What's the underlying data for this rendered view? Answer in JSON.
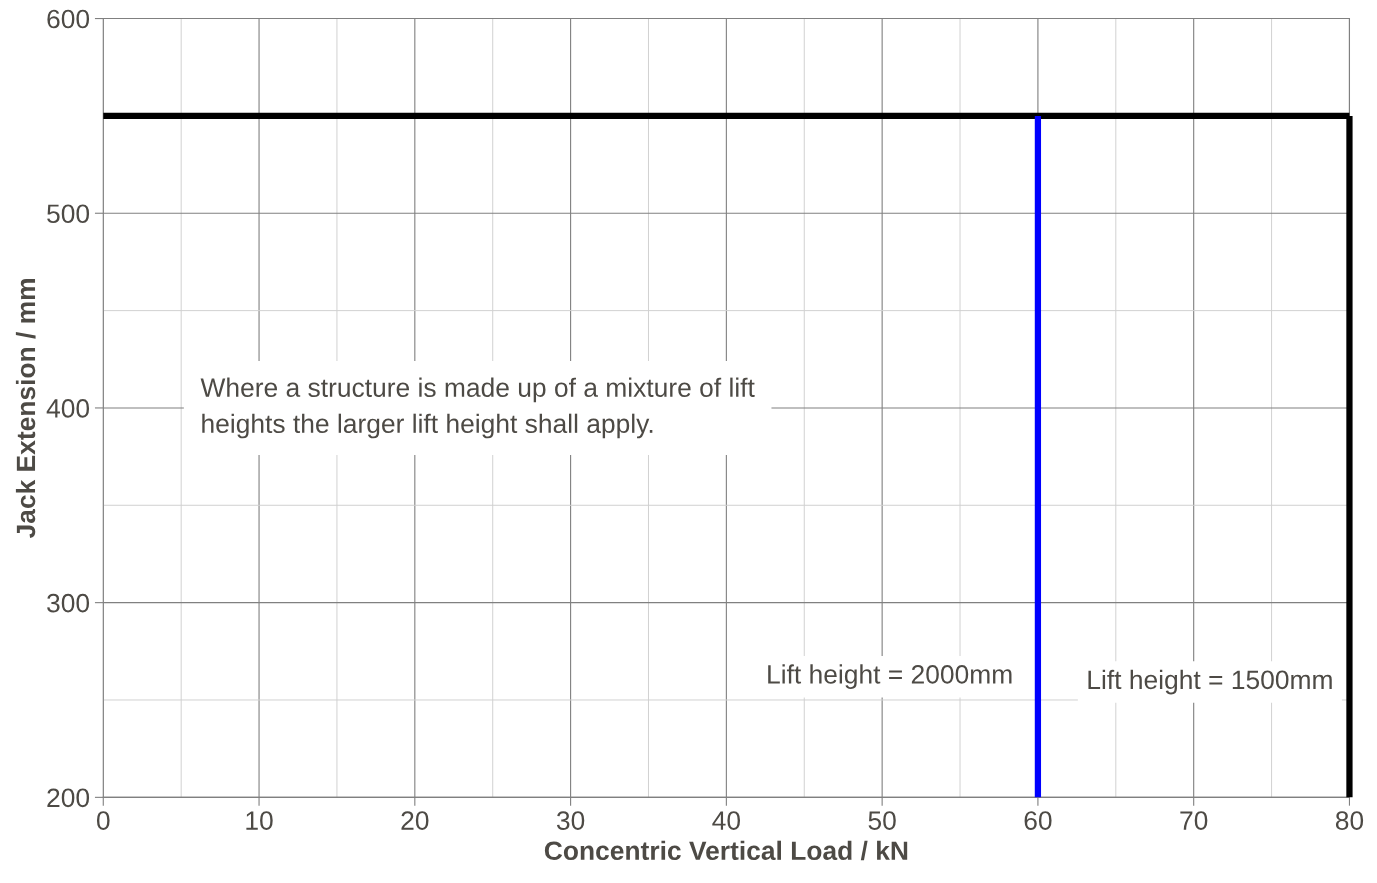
{
  "chart_data": {
    "type": "line",
    "xlabel": "Concentric Vertical Load / kN",
    "ylabel": "Jack Extension / mm",
    "xlim": [
      0,
      80
    ],
    "xticks": [
      0,
      10,
      20,
      30,
      40,
      50,
      60,
      70,
      80
    ],
    "ylim": [
      200,
      600
    ],
    "yticks": [
      200,
      300,
      400,
      500,
      600
    ],
    "grid": true,
    "marker": "none",
    "line_style": "solid",
    "series": [
      {
        "x": [
          0,
          80
        ],
        "values": [
          550,
          550
        ],
        "color": "#000000"
      },
      {
        "x": [
          80,
          80
        ],
        "values": [
          550,
          200
        ],
        "color": "#000000"
      },
      {
        "x": [
          60,
          60
        ],
        "values": [
          200,
          550
        ],
        "color": "#0000ff"
      }
    ],
    "annotations": [
      "Where a structure is made up of a mixture of lift\nheights the larger lift height shall apply.",
      "Lift height = 2000mm",
      "Lift height = 1500mm"
    ]
  }
}
